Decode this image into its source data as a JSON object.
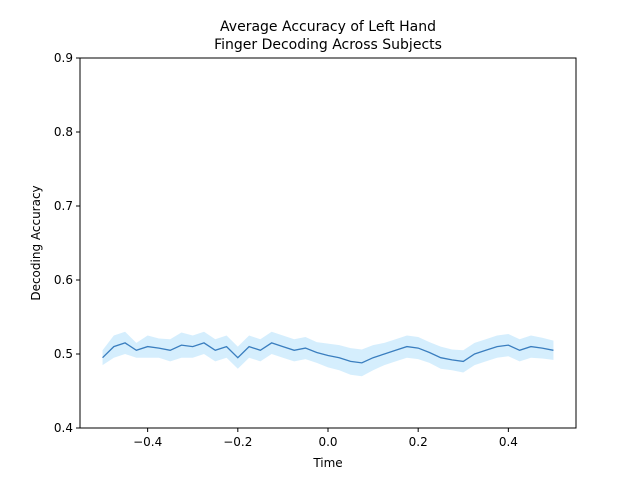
{
  "chart_data": {
    "type": "line",
    "title_line1": "Average Accuracy of Left Hand",
    "title_line2": "Finger Decoding Across Subjects",
    "xlabel": "Time",
    "ylabel": "Decoding Accuracy",
    "xlim": [
      -0.55,
      0.55
    ],
    "ylim": [
      0.4,
      0.9
    ],
    "xticks": [
      -0.4,
      -0.2,
      0.0,
      0.2,
      0.4
    ],
    "xtick_labels": [
      "−0.4",
      "−0.2",
      "0.0",
      "0.2",
      "0.4"
    ],
    "yticks": [
      0.4,
      0.5,
      0.6,
      0.7,
      0.8,
      0.9
    ],
    "ytick_labels": [
      "0.4",
      "0.5",
      "0.6",
      "0.7",
      "0.8",
      "0.9"
    ],
    "grid": false,
    "colors": {
      "line": "#3a7ebf",
      "band": "#87cefa"
    },
    "series": [
      {
        "x": [
          -0.5,
          -0.475,
          -0.45,
          -0.425,
          -0.4,
          -0.375,
          -0.35,
          -0.325,
          -0.3,
          -0.275,
          -0.25,
          -0.225,
          -0.2,
          -0.175,
          -0.15,
          -0.125,
          -0.1,
          -0.075,
          -0.05,
          -0.025,
          0.0,
          0.025,
          0.05,
          0.075,
          0.1,
          0.125,
          0.15,
          0.175,
          0.2,
          0.225,
          0.25,
          0.275,
          0.3,
          0.325,
          0.35,
          0.375,
          0.4,
          0.425,
          0.45,
          0.475,
          0.5
        ],
        "y": [
          0.495,
          0.51,
          0.515,
          0.505,
          0.51,
          0.508,
          0.505,
          0.512,
          0.51,
          0.515,
          0.505,
          0.51,
          0.495,
          0.51,
          0.505,
          0.515,
          0.51,
          0.505,
          0.508,
          0.502,
          0.498,
          0.495,
          0.49,
          0.488,
          0.495,
          0.5,
          0.505,
          0.51,
          0.508,
          0.502,
          0.495,
          0.492,
          0.49,
          0.5,
          0.505,
          0.51,
          0.512,
          0.505,
          0.51,
          0.508,
          0.505
        ],
        "lower": [
          0.485,
          0.495,
          0.5,
          0.495,
          0.495,
          0.495,
          0.49,
          0.495,
          0.495,
          0.5,
          0.49,
          0.495,
          0.48,
          0.495,
          0.49,
          0.5,
          0.495,
          0.49,
          0.493,
          0.488,
          0.482,
          0.478,
          0.472,
          0.47,
          0.478,
          0.485,
          0.49,
          0.495,
          0.493,
          0.488,
          0.48,
          0.478,
          0.475,
          0.485,
          0.49,
          0.495,
          0.497,
          0.49,
          0.495,
          0.494,
          0.492
        ],
        "upper": [
          0.505,
          0.525,
          0.53,
          0.515,
          0.525,
          0.521,
          0.52,
          0.529,
          0.525,
          0.53,
          0.52,
          0.525,
          0.51,
          0.525,
          0.52,
          0.53,
          0.525,
          0.52,
          0.523,
          0.516,
          0.514,
          0.512,
          0.508,
          0.506,
          0.512,
          0.515,
          0.52,
          0.525,
          0.523,
          0.516,
          0.51,
          0.506,
          0.505,
          0.515,
          0.52,
          0.525,
          0.527,
          0.52,
          0.525,
          0.522,
          0.518
        ]
      }
    ]
  }
}
